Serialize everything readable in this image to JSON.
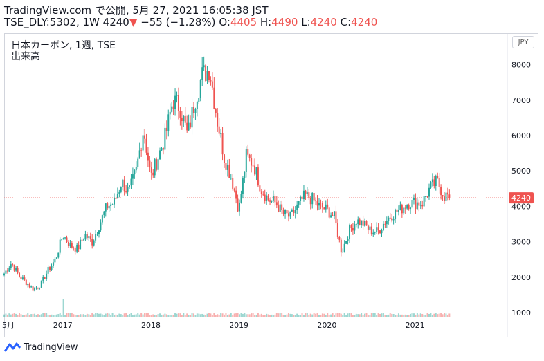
{
  "header": {
    "line1": "TradingView.com で公開, 5月 27, 2021 16:05:38 JST",
    "symbol": "TSE_DLY:5302, 1W",
    "last": "4240",
    "arrow": "▼",
    "change": "−55 (−1.28%)",
    "o_label": "O:",
    "o": "4405",
    "h_label": "H:",
    "h": "4490",
    "l_label": "L:",
    "l": "4240",
    "c_label": "C:",
    "c": "4240"
  },
  "legend": {
    "title": "日本カーボン, 1週, TSE",
    "volume": "出来高"
  },
  "currency": "JPY",
  "footer": {
    "brand": "TradingView"
  },
  "colors": {
    "up": "#26a69a",
    "down": "#ef5350",
    "price_line": "#ef5350"
  },
  "chart_data": {
    "type": "candlestick",
    "timeframe": "weekly",
    "x_tick_labels": [
      "5月",
      "2017",
      "2018",
      "2019",
      "2020",
      "2021"
    ],
    "y_ticks": [
      1000,
      2000,
      3000,
      4000,
      5000,
      6000,
      7000,
      8000
    ],
    "ylim": [
      900,
      8500
    ],
    "last_price": 4240,
    "last_price_label": "4240",
    "price_anchors": [
      [
        "2016-05",
        2100
      ],
      [
        "2016-06",
        2400
      ],
      [
        "2016-07",
        2050
      ],
      [
        "2016-08",
        1850
      ],
      [
        "2016-09",
        1650
      ],
      [
        "2016-10",
        1800
      ],
      [
        "2016-11",
        2200
      ],
      [
        "2016-12",
        2500
      ],
      [
        "2017-01",
        3200
      ],
      [
        "2017-02",
        2900
      ],
      [
        "2017-03",
        2800
      ],
      [
        "2017-04",
        3200
      ],
      [
        "2017-05",
        3000
      ],
      [
        "2017-06",
        3500
      ],
      [
        "2017-07",
        4000
      ],
      [
        "2017-08",
        4100
      ],
      [
        "2017-09",
        4700
      ],
      [
        "2017-10",
        4400
      ],
      [
        "2017-11",
        5000
      ],
      [
        "2017-12",
        6200
      ],
      [
        "2018-01",
        4800
      ],
      [
        "2018-02",
        5400
      ],
      [
        "2018-03",
        6000
      ],
      [
        "2018-04",
        7000
      ],
      [
        "2018-05",
        6800
      ],
      [
        "2018-06",
        6000
      ],
      [
        "2018-07",
        7000
      ],
      [
        "2018-08",
        7700
      ],
      [
        "2018-09",
        7900
      ],
      [
        "2018-10",
        6500
      ],
      [
        "2018-11",
        5400
      ],
      [
        "2018-12",
        4800
      ],
      [
        "2019-01",
        3900
      ],
      [
        "2019-02",
        5400
      ],
      [
        "2019-03",
        5200
      ],
      [
        "2019-04",
        4500
      ],
      [
        "2019-05",
        4200
      ],
      [
        "2019-06",
        4100
      ],
      [
        "2019-07",
        3800
      ],
      [
        "2019-08",
        3700
      ],
      [
        "2019-09",
        4000
      ],
      [
        "2019-10",
        4300
      ],
      [
        "2019-11",
        4200
      ],
      [
        "2019-12",
        4000
      ],
      [
        "2020-01",
        3900
      ],
      [
        "2020-02",
        3700
      ],
      [
        "2020-03",
        2700
      ],
      [
        "2020-04",
        3300
      ],
      [
        "2020-05",
        3600
      ],
      [
        "2020-06",
        3500
      ],
      [
        "2020-07",
        3300
      ],
      [
        "2020-08",
        3300
      ],
      [
        "2020-09",
        3600
      ],
      [
        "2020-10",
        3800
      ],
      [
        "2020-11",
        3900
      ],
      [
        "2020-12",
        4100
      ],
      [
        "2021-01",
        4100
      ],
      [
        "2021-02",
        4100
      ],
      [
        "2021-03",
        4500
      ],
      [
        "2021-04",
        4700
      ],
      [
        "2021-05",
        4300
      ]
    ],
    "volume_spike": {
      "date": "2017-01",
      "relative": 1.0
    }
  }
}
